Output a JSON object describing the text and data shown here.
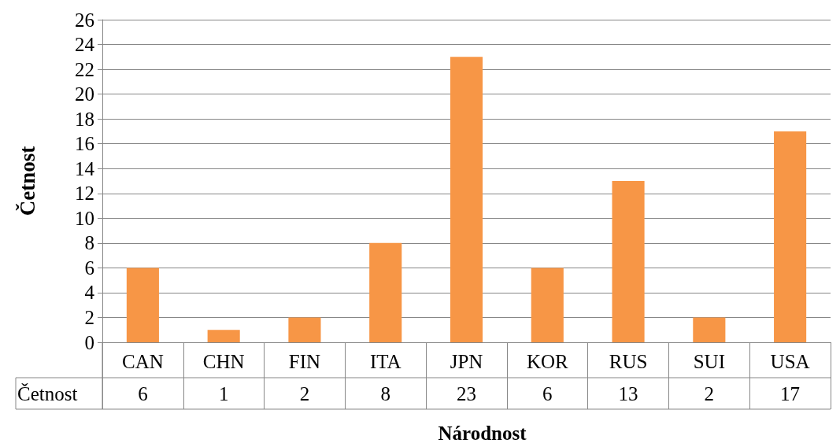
{
  "chart_data": {
    "type": "bar",
    "xlabel": "Národnost",
    "ylabel": "Četnost",
    "categories": [
      "CAN",
      "CHN",
      "FIN",
      "ITA",
      "JPN",
      "KOR",
      "RUS",
      "SUI",
      "USA"
    ],
    "series": [
      {
        "name": "Četnost",
        "color": "#f79646",
        "values": [
          6,
          1,
          2,
          8,
          23,
          6,
          13,
          2,
          17
        ]
      }
    ],
    "ylim": [
      0,
      26
    ],
    "yticks": [
      0,
      2,
      4,
      6,
      8,
      10,
      12,
      14,
      16,
      18,
      20,
      22,
      24,
      26
    ],
    "grid": "y",
    "legend": false,
    "data_labels": true
  }
}
